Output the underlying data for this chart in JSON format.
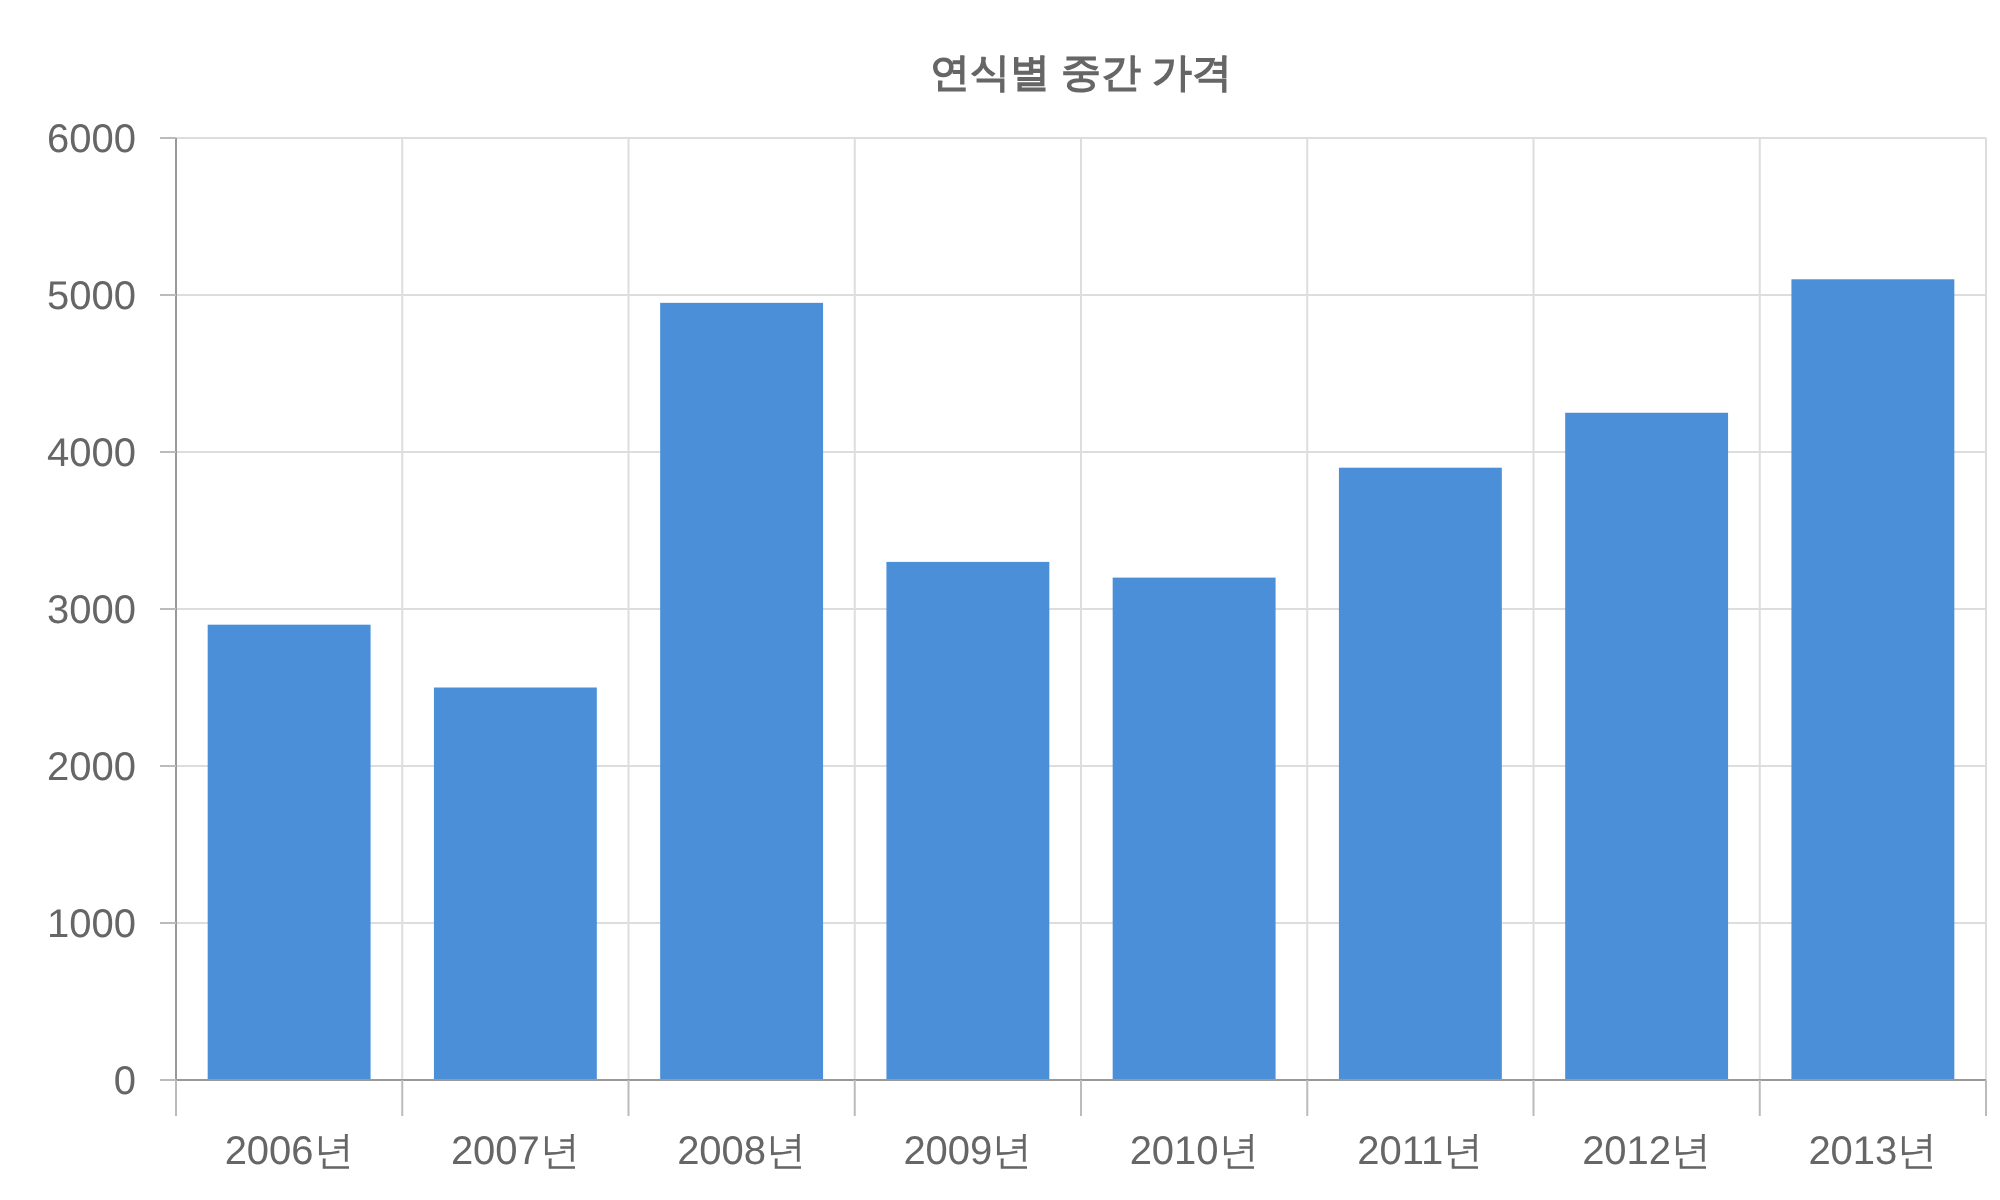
{
  "chart_data": {
    "type": "bar",
    "title": "연식별 중간 가격",
    "categories": [
      "2006년",
      "2007년",
      "2008년",
      "2009년",
      "2010년",
      "2011년",
      "2012년",
      "2013년"
    ],
    "values": [
      2900,
      2500,
      4950,
      3300,
      3200,
      3900,
      4250,
      5100
    ],
    "color": "#4a8fd8",
    "ylim": [
      0,
      6000
    ],
    "yticks": [
      0,
      1000,
      2000,
      3000,
      4000,
      5000,
      6000
    ],
    "grid": true
  }
}
